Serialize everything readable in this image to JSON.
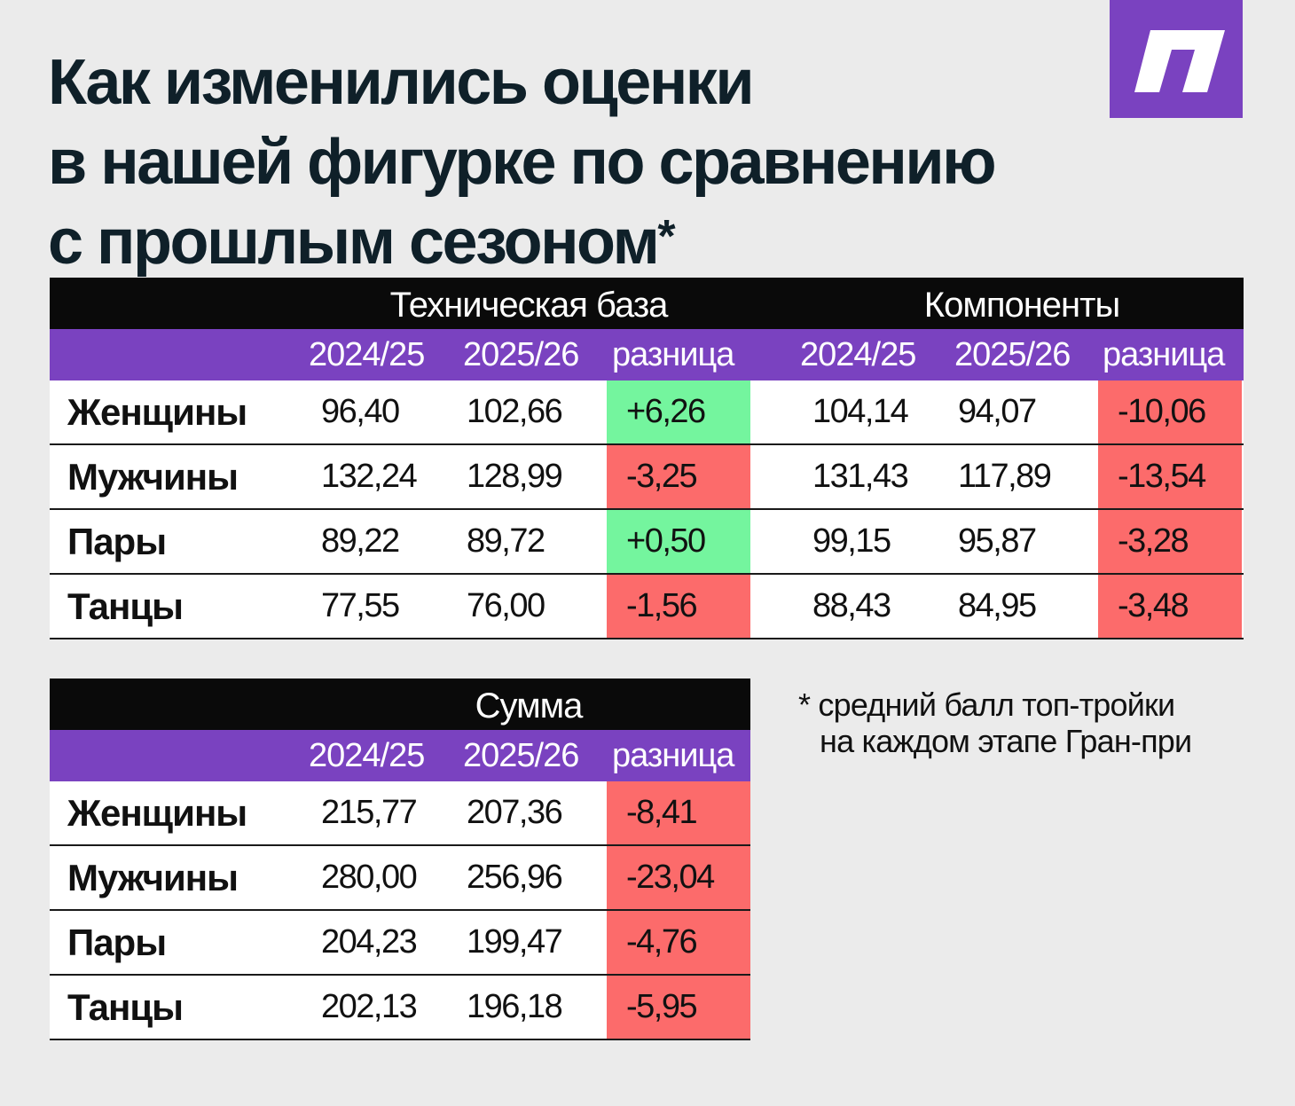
{
  "header": {
    "title": "Как изменились оценки\nв нашей фигурке по сравнению\nс прошлым сезоном",
    "asterisk": "*"
  },
  "colors": {
    "accent": "#7a42c0",
    "positive": "#74f59e",
    "negative": "#fc6b6b",
    "header_bar": "#0a0a0a"
  },
  "logo_icon": "publication-logo-icon",
  "chart_data": [
    {
      "type": "table",
      "groups": [
        {
          "title": "Техническая база",
          "columns": [
            "2024/25",
            "2025/26",
            "разница"
          ],
          "rows": [
            {
              "label": "Женщины",
              "values": [
                "96,40",
                "102,66",
                "+6,26"
              ],
              "sign": "pos"
            },
            {
              "label": "Мужчины",
              "values": [
                "132,24",
                "128,99",
                "-3,25"
              ],
              "sign": "neg"
            },
            {
              "label": "Пары",
              "values": [
                "89,22",
                "89,72",
                "+0,50"
              ],
              "sign": "pos"
            },
            {
              "label": "Танцы",
              "values": [
                "77,55",
                "76,00",
                "-1,56"
              ],
              "sign": "neg"
            }
          ]
        },
        {
          "title": "Компоненты",
          "columns": [
            "2024/25",
            "2025/26",
            "разница"
          ],
          "rows": [
            {
              "label": "Женщины",
              "values": [
                "104,14",
                "94,07",
                "-10,06"
              ],
              "sign": "neg"
            },
            {
              "label": "Мужчины",
              "values": [
                "131,43",
                "117,89",
                "-13,54"
              ],
              "sign": "neg"
            },
            {
              "label": "Пары",
              "values": [
                "99,15",
                "95,87",
                "-3,28"
              ],
              "sign": "neg"
            },
            {
              "label": "Танцы",
              "values": [
                "88,43",
                "84,95",
                "-3,48"
              ],
              "sign": "neg"
            }
          ]
        }
      ]
    },
    {
      "type": "table",
      "groups": [
        {
          "title": "Сумма",
          "columns": [
            "2024/25",
            "2025/26",
            "разница"
          ],
          "rows": [
            {
              "label": "Женщины",
              "values": [
                "215,77",
                "207,36",
                "-8,41"
              ],
              "sign": "neg"
            },
            {
              "label": "Мужчины",
              "values": [
                "280,00",
                "256,96",
                "-23,04"
              ],
              "sign": "neg"
            },
            {
              "label": "Пары",
              "values": [
                "204,23",
                "199,47",
                "-4,76"
              ],
              "sign": "neg"
            },
            {
              "label": "Танцы",
              "values": [
                "202,13",
                "196,18",
                "-5,95"
              ],
              "sign": "neg"
            }
          ]
        }
      ]
    }
  ],
  "footnote": {
    "line1": "* средний балл топ-тройки",
    "line2": "на каждом этапе Гран-при"
  }
}
